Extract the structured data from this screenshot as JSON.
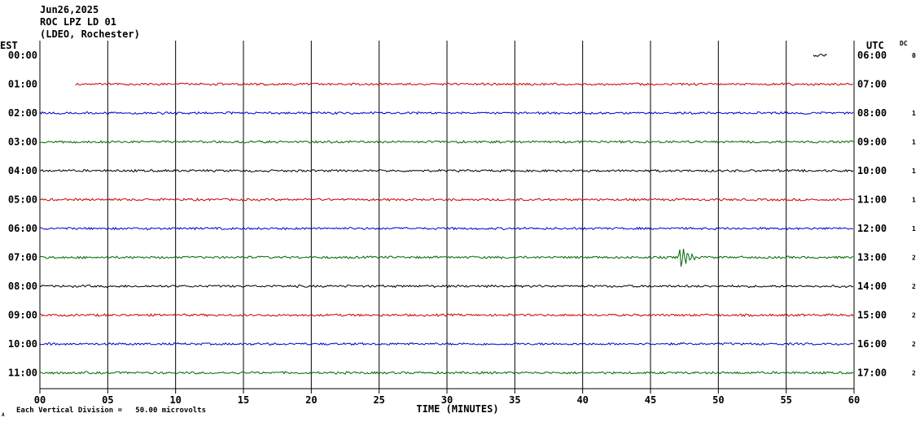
{
  "header": {
    "date": "Jun26,2025",
    "station": "ROC LPZ LD 01",
    "network": "(LDEO, Rochester)"
  },
  "chart_data": {
    "type": "line",
    "title": "ROC LPZ LD 01",
    "xlabel": "TIME (MINUTES)",
    "xlim": [
      0,
      60
    ],
    "x_ticks": [
      "00",
      "05",
      "10",
      "15",
      "20",
      "25",
      "30",
      "35",
      "40",
      "45",
      "50",
      "55",
      "60"
    ],
    "left_axis_label": "EST",
    "right_axis_label": "UTC",
    "dc_label": "DC",
    "rows": [
      {
        "est": "00:00",
        "utc": "06:00",
        "dc": "0",
        "color": "#000000",
        "trace_start_min": 57,
        "trace_end_min": 58
      },
      {
        "est": "01:00",
        "utc": "07:00",
        "dc": "",
        "color": "#cc0000",
        "trace_start_min": 2.6,
        "trace_end_min": 60
      },
      {
        "est": "02:00",
        "utc": "08:00",
        "dc": "1",
        "color": "#0000cc",
        "trace_start_min": 0,
        "trace_end_min": 60
      },
      {
        "est": "03:00",
        "utc": "09:00",
        "dc": "1",
        "color": "#006600",
        "trace_start_min": 0,
        "trace_end_min": 60
      },
      {
        "est": "04:00",
        "utc": "10:00",
        "dc": "1",
        "color": "#000000",
        "trace_start_min": 0,
        "trace_end_min": 60
      },
      {
        "est": "05:00",
        "utc": "11:00",
        "dc": "1",
        "color": "#cc0000",
        "trace_start_min": 0,
        "trace_end_min": 60
      },
      {
        "est": "06:00",
        "utc": "12:00",
        "dc": "1",
        "color": "#0000cc",
        "trace_start_min": 0,
        "trace_end_min": 60
      },
      {
        "est": "07:00",
        "utc": "13:00",
        "dc": "2",
        "color": "#006600",
        "trace_start_min": 0,
        "trace_end_min": 60,
        "event_min": 47.2
      },
      {
        "est": "08:00",
        "utc": "14:00",
        "dc": "2",
        "color": "#000000",
        "trace_start_min": 0,
        "trace_end_min": 60
      },
      {
        "est": "09:00",
        "utc": "15:00",
        "dc": "2",
        "color": "#cc0000",
        "trace_start_min": 0,
        "trace_end_min": 60
      },
      {
        "est": "10:00",
        "utc": "16:00",
        "dc": "2",
        "color": "#0000cc",
        "trace_start_min": 0,
        "trace_end_min": 60
      },
      {
        "est": "11:00",
        "utc": "17:00",
        "dc": "2",
        "color": "#006600",
        "trace_start_min": 0,
        "trace_end_min": 60
      }
    ],
    "grid": true
  },
  "footer": {
    "scale_note": "Each Vertical Division =   50.00 microvolts",
    "corner_mark": "A"
  }
}
